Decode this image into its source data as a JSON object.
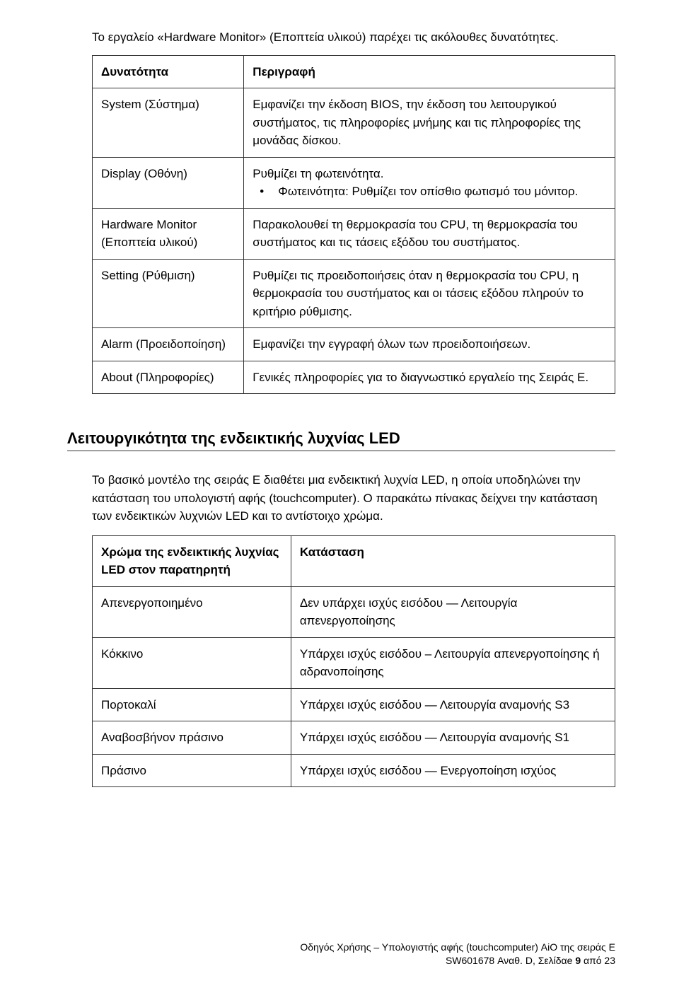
{
  "intro": "Το εργαλείο «Hardware Monitor» (Εποπτεία υλικού) παρέχει τις ακόλουθες δυνατότητες.",
  "table1": {
    "header": {
      "col1": "Δυνατότητα",
      "col2": "Περιγραφή"
    },
    "rows": [
      {
        "col1": "System (Σύστημα)",
        "col2": "Εμφανίζει την έκδοση BIOS, την έκδοση του λειτουργικού συστήματος, τις πληροφορίες μνήμης και τις πληροφορίες της μονάδας δίσκου."
      },
      {
        "col1": "Display (Οθόνη)",
        "col2_line1": "Ρυθμίζει τη φωτεινότητα.",
        "col2_bullet": "Φωτεινότητα: Ρυθμίζει τον οπίσθιο φωτισμό του μόνιτορ."
      },
      {
        "col1": "Hardware Monitor (Εποπτεία υλικού)",
        "col2": "Παρακολουθεί τη θερμοκρασία του CPU, τη θερμοκρασία του συστήματος και τις τάσεις εξόδου του συστήματος."
      },
      {
        "col1": "Setting (Ρύθμιση)",
        "col2": "Ρυθμίζει τις προειδοποιήσεις όταν η θερμοκρασία του CPU, η θερμοκρασία του συστήματος και οι τάσεις εξόδου πληρούν το κριτήριο ρύθμισης."
      },
      {
        "col1": "Alarm (Προειδοποίηση)",
        "col2": "Εμφανίζει την εγγραφή όλων των προειδοποιήσεων."
      },
      {
        "col1": "About (Πληροφορίες)",
        "col2": "Γενικές πληροφορίες για το διαγνωστικό εργαλείο της Σειράς Ε."
      }
    ]
  },
  "section_heading": "Λειτουργικότητα της ενδεικτικής λυχνίας LED",
  "led_intro": "Το βασικό μοντέλο της σειράς E διαθέτει μια ενδεικτική λυχνία LED, η οποία υποδηλώνει την κατάσταση του υπολογιστή αφής (touchcomputer). Ο παρακάτω πίνακας δείχνει την κατάσταση των ενδεικτικών λυχνιών LED και το αντίστοιχο χρώμα.",
  "table2": {
    "header": {
      "col1": "Χρώμα της ενδεικτικής λυχνίας LED στον παρατηρητή",
      "col2": "Κατάσταση"
    },
    "rows": [
      {
        "col1": "Απενεργοποιημένο",
        "col2": "Δεν υπάρχει ισχύς εισόδου — Λειτουργία απενεργοποίησης"
      },
      {
        "col1": "Κόκκινο",
        "col2": "Υπάρχει ισχύς εισόδου – Λειτουργία απενεργοποίησης ή αδρανοποίησης"
      },
      {
        "col1": "Πορτοκαλί",
        "col2": "Υπάρχει ισχύς εισόδου — Λειτουργία αναμονής S3"
      },
      {
        "col1": "Αναβοσβήνον πράσινο",
        "col2": "Υπάρχει ισχύς εισόδου — Λειτουργία αναμονής S1"
      },
      {
        "col1": "Πράσινο",
        "col2": "Υπάρχει ισχύς εισόδου — Ενεργοποίηση ισχύος"
      }
    ]
  },
  "footer": {
    "line1": "Οδηγός Χρήσης – Υπολογιστής αφής (touchcomputer) AiO της σειράς E",
    "line2_prefix": "SW601678 Αναθ. D, Σελίδαe ",
    "line2_bold": "9",
    "line2_suffix": " από 23"
  }
}
